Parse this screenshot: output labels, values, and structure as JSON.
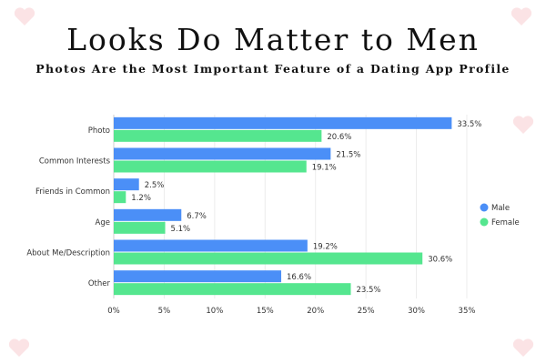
{
  "chart_data": {
    "type": "bar",
    "orientation": "horizontal",
    "title": "Looks Do Matter to Men",
    "subtitle": "Photos Are the Most Important Feature of a Dating App Profile",
    "categories": [
      "Photo",
      "Common Interests",
      "Friends in Common",
      "Age",
      "About Me/Description",
      "Other"
    ],
    "series": [
      {
        "name": "Male",
        "color": "#4b8ff7",
        "values": [
          33.5,
          21.5,
          2.5,
          6.7,
          19.2,
          16.6
        ],
        "labels": [
          "33.5%",
          "21.5%",
          "2.5%",
          "6.7%",
          "19.2%",
          "16.6%"
        ]
      },
      {
        "name": "Female",
        "color": "#55e68f",
        "values": [
          20.6,
          19.1,
          1.2,
          5.1,
          30.6,
          23.5
        ],
        "labels": [
          "20.6%",
          "19.1%",
          "1.2%",
          "5.1%",
          "30.6%",
          "23.5%"
        ]
      }
    ],
    "xlim": [
      0,
      35
    ],
    "xticks": [
      "0%",
      "5%",
      "10%",
      "15%",
      "20%",
      "25%",
      "30%",
      "35%"
    ],
    "grid": true,
    "legend": "right"
  }
}
